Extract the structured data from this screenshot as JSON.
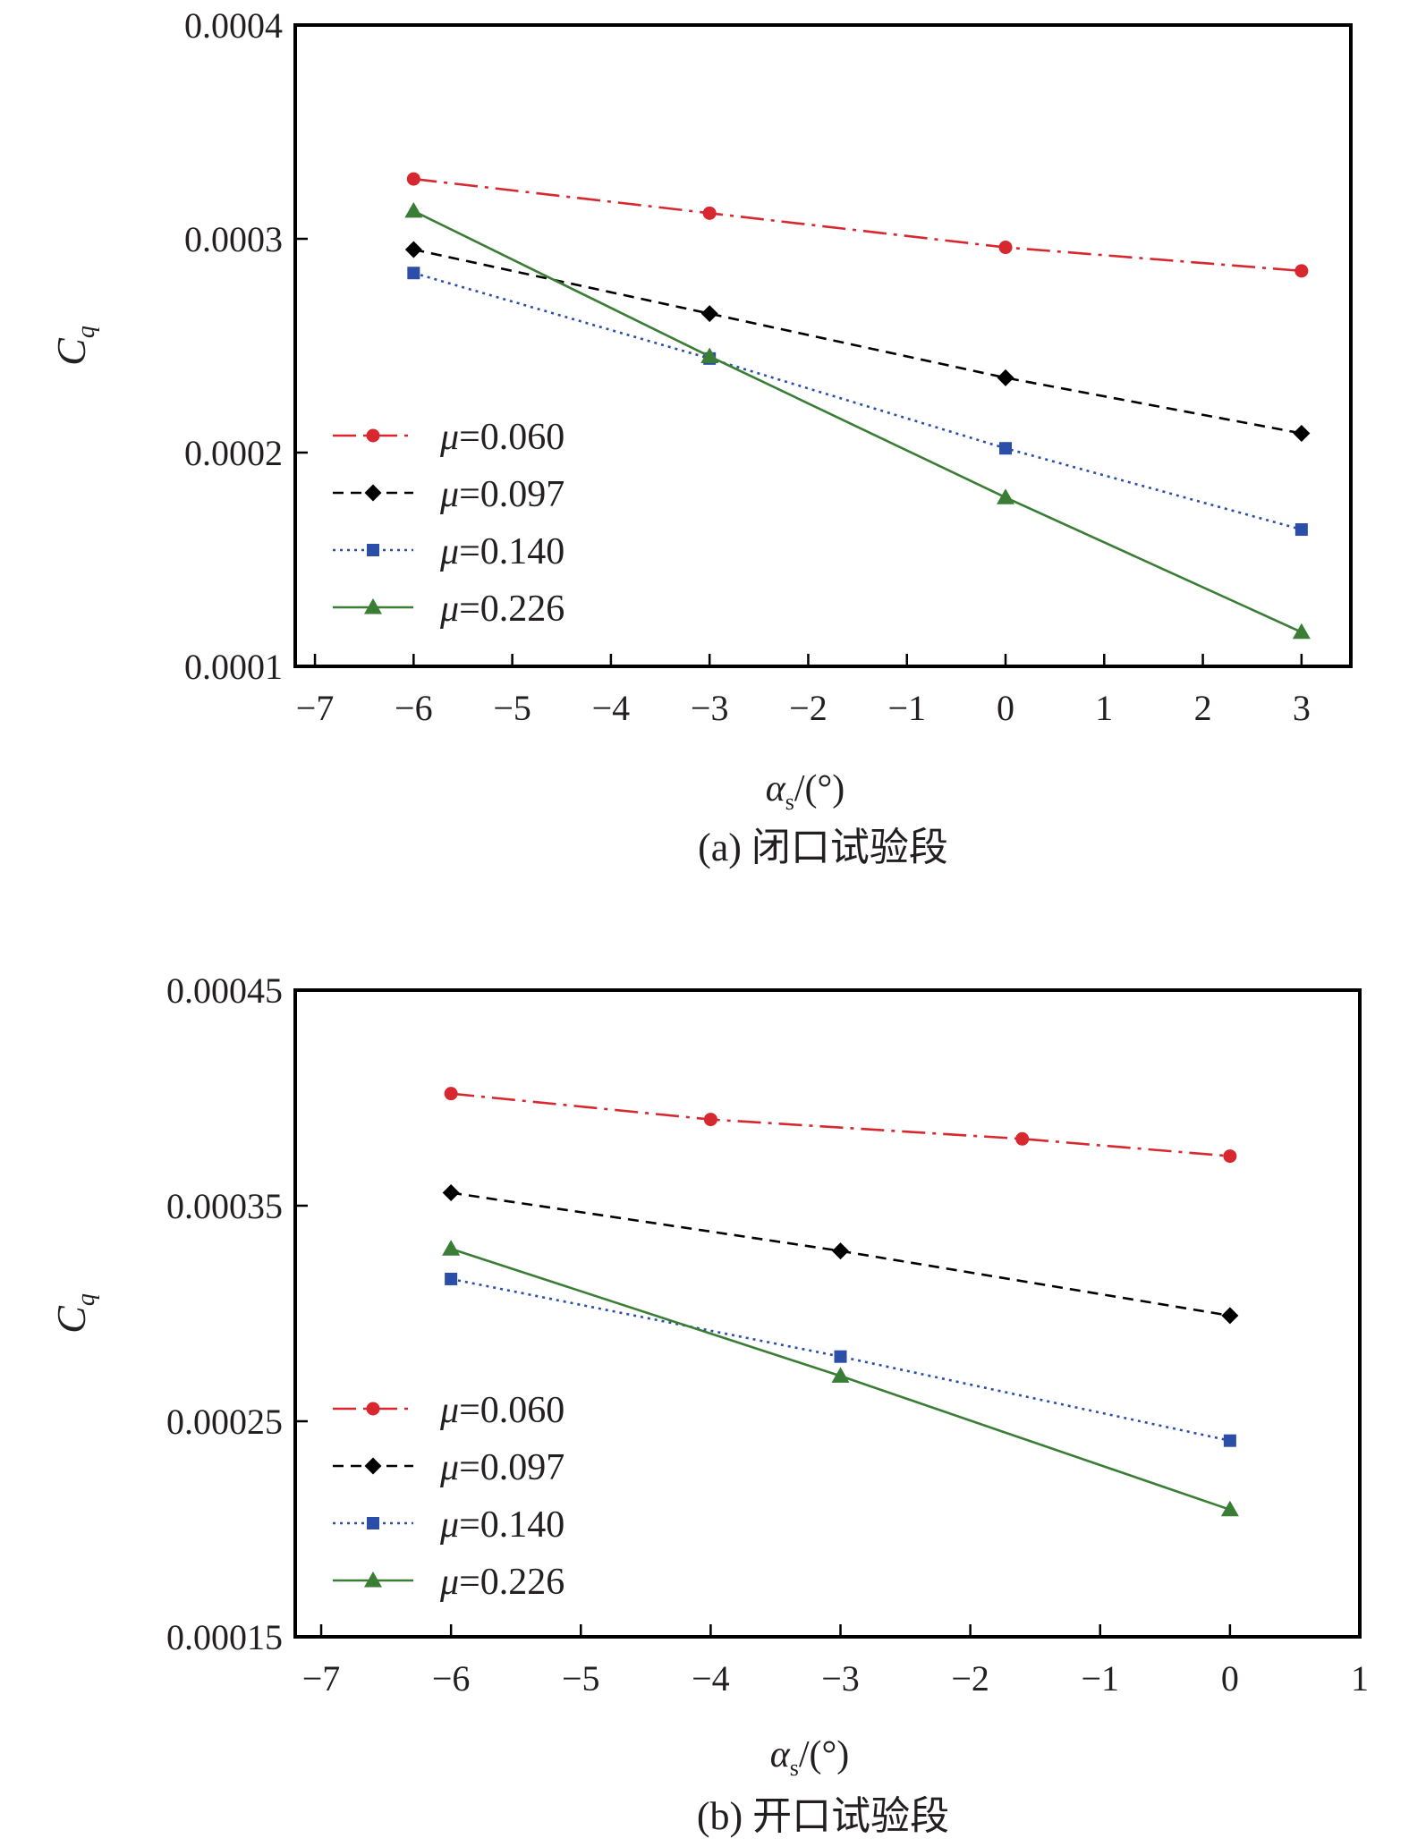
{
  "chart_data": [
    {
      "type": "line",
      "caption": "(a) 闭口试验段",
      "ylabel": "C",
      "ylabel_sub": "q",
      "xlabel": "α",
      "xlabel_sub": "s",
      "xlabel_unit": "/(°)",
      "xlim": [
        -7.2,
        3.5
      ],
      "ylim": [
        0.0001,
        0.0004
      ],
      "xticks": [
        -7,
        -6,
        -5,
        -4,
        -3,
        -2,
        -1,
        0,
        1,
        2,
        3
      ],
      "xtick_labels": [
        "−7",
        "−6",
        "−5",
        "−4",
        "−3",
        "−2",
        "−1",
        "0",
        "1",
        "2",
        "3"
      ],
      "yticks": [
        0.0001,
        0.0002,
        0.0003,
        0.0004
      ],
      "ytick_labels": [
        "0.0001",
        "0.0002",
        "0.0003",
        "0.0004"
      ],
      "legend_position": "lower-left",
      "series": [
        {
          "name": "μ=0.060",
          "mu_symbol": "μ",
          "mu_value": "=0.060",
          "color": "#d7282f",
          "marker": "circle",
          "dash": "26,8,4,8",
          "x": [
            -6,
            -3,
            0,
            3
          ],
          "y": [
            0.000328,
            0.000312,
            0.000296,
            0.000285
          ]
        },
        {
          "name": "μ=0.097",
          "mu_symbol": "μ",
          "mu_value": "=0.097",
          "color": "#000000",
          "marker": "diamond",
          "dash": "12,8",
          "x": [
            -6,
            -3,
            0,
            3
          ],
          "y": [
            0.000295,
            0.000265,
            0.000235,
            0.000209
          ]
        },
        {
          "name": "μ=0.140",
          "mu_symbol": "μ",
          "mu_value": "=0.140",
          "color": "#2b4fa8",
          "marker": "square",
          "dash": "3,5",
          "x": [
            -6,
            -3,
            0,
            3
          ],
          "y": [
            0.000284,
            0.000244,
            0.000202,
            0.000164
          ]
        },
        {
          "name": "μ=0.226",
          "mu_symbol": "μ",
          "mu_value": "=0.226",
          "color": "#3a7d35",
          "marker": "triangle",
          "dash": "",
          "x": [
            -6,
            -3,
            0,
            3
          ],
          "y": [
            0.000313,
            0.000245,
            0.000179,
            0.000116
          ]
        }
      ]
    },
    {
      "type": "line",
      "caption": "(b) 开口试验段",
      "ylabel": "C",
      "ylabel_sub": "q",
      "xlabel": "α",
      "xlabel_sub": "s",
      "xlabel_unit": "/(°)",
      "xlim": [
        -7.2,
        1.0
      ],
      "ylim": [
        0.00015,
        0.00045
      ],
      "xticks": [
        -7,
        -6,
        -5,
        -4,
        -3,
        -2,
        -1,
        0,
        1
      ],
      "xtick_labels": [
        "−7",
        "−6",
        "−5",
        "−4",
        "−3",
        "−2",
        "−1",
        "0",
        "1"
      ],
      "yticks": [
        0.00015,
        0.00025,
        0.00035,
        0.00045
      ],
      "ytick_labels": [
        "0.00015",
        "0.00025",
        "0.00035",
        "0.00045"
      ],
      "legend_position": "lower-left",
      "series": [
        {
          "name": "μ=0.060",
          "mu_symbol": "μ",
          "mu_value": "=0.060",
          "color": "#d7282f",
          "marker": "circle",
          "dash": "26,8,4,8",
          "x": [
            -6,
            -4,
            -1.6,
            0
          ],
          "y": [
            0.000402,
            0.00039,
            0.000381,
            0.000373
          ]
        },
        {
          "name": "μ=0.097",
          "mu_symbol": "μ",
          "mu_value": "=0.097",
          "color": "#000000",
          "marker": "diamond",
          "dash": "12,8",
          "x": [
            -6,
            -3,
            0
          ],
          "y": [
            0.000356,
            0.000329,
            0.000299
          ]
        },
        {
          "name": "μ=0.140",
          "mu_symbol": "μ",
          "mu_value": "=0.140",
          "color": "#2b4fa8",
          "marker": "square",
          "dash": "3,5",
          "x": [
            -6,
            -3,
            0
          ],
          "y": [
            0.000316,
            0.00028,
            0.000241
          ]
        },
        {
          "name": "μ=0.226",
          "mu_symbol": "μ",
          "mu_value": "=0.226",
          "color": "#3a7d35",
          "marker": "triangle",
          "dash": "",
          "x": [
            -6,
            -3,
            0
          ],
          "y": [
            0.00033,
            0.000271,
            0.000209
          ]
        }
      ]
    }
  ]
}
